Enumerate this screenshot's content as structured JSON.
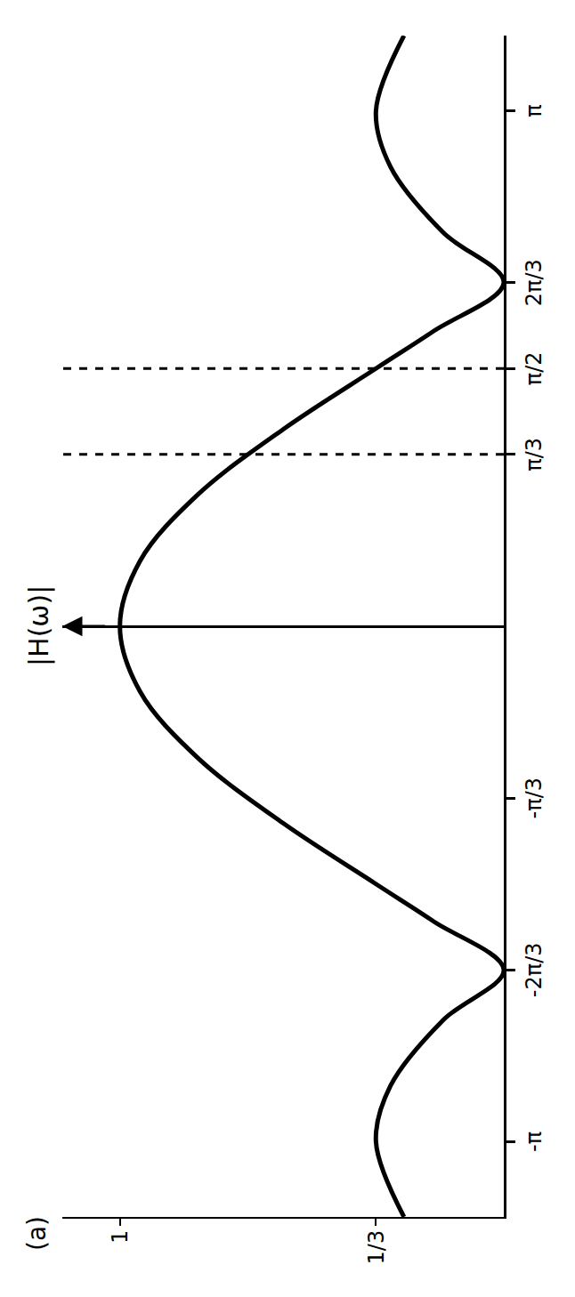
{
  "chart_data": {
    "type": "line",
    "panel": "(a)",
    "y_label": "|H(ω)|",
    "x": [
      -3.6,
      -3.1416,
      -2.8,
      -2.4,
      -2.0944,
      -1.8,
      -1.5708,
      -1.2,
      -0.8,
      -0.4,
      0,
      0.4,
      0.8,
      1.2,
      1.5708,
      1.8,
      2.0944,
      2.4,
      2.8,
      3.1416,
      3.6
    ],
    "values": [
      0.26,
      0.333,
      0.295,
      0.158,
      0,
      0.182,
      0.333,
      0.575,
      0.798,
      0.947,
      1,
      0.947,
      0.798,
      0.575,
      0.333,
      0.182,
      0,
      0.158,
      0.295,
      0.333,
      0.26
    ],
    "color": "#000000",
    "xlim": [
      -3.6,
      3.6
    ],
    "ylim": [
      0,
      1.15
    ],
    "xticks": [
      {
        "value": -3.1416,
        "label": "-π"
      },
      {
        "value": -2.0944,
        "label": "-2π/3"
      },
      {
        "value": -1.0472,
        "label": "-π/3"
      },
      {
        "value": 1.0472,
        "label": "π/3"
      },
      {
        "value": 1.5708,
        "label": "π/2"
      },
      {
        "value": 2.0944,
        "label": "2π/3"
      },
      {
        "value": 3.1416,
        "label": "π"
      }
    ],
    "yticks": [
      {
        "value": 0.333,
        "label": "1/3"
      },
      1
    ],
    "dashed_x": [
      1.0472,
      1.5708
    ],
    "grid": false
  }
}
